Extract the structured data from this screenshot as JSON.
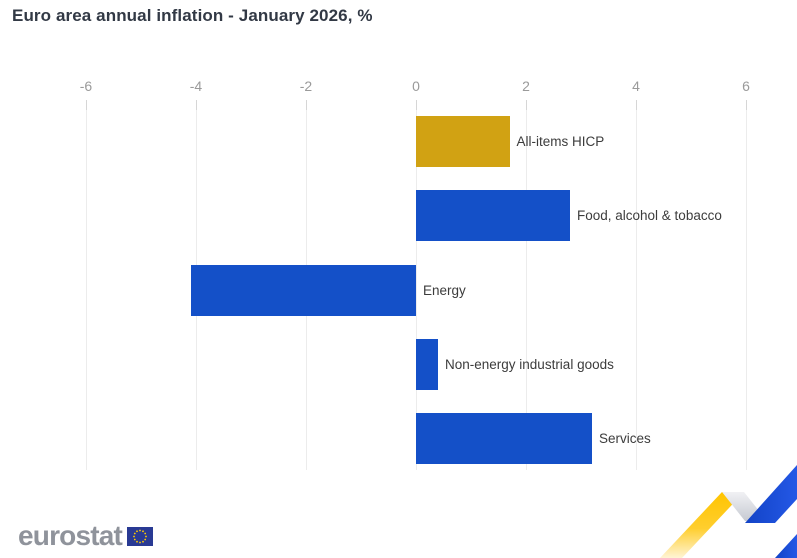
{
  "header": {
    "title": "Euro area annual inflation - January 2026, %"
  },
  "chart_data": {
    "type": "bar",
    "orientation": "horizontal",
    "title": "Euro area annual inflation - January 2026, %",
    "xlabel": "",
    "ylabel": "",
    "categories": [
      "All-items HICP",
      "Food, alcohol & tobacco",
      "Energy",
      "Non-energy industrial goods",
      "Services"
    ],
    "values": [
      1.7,
      2.8,
      -4.1,
      0.4,
      3.2
    ],
    "bar_colors": [
      "#D1A213",
      "#1450C8",
      "#1450C8",
      "#1450C8",
      "#1450C8"
    ],
    "xlim": [
      -6,
      6
    ],
    "x_ticks": [
      -6,
      -4,
      -2,
      0,
      2,
      4,
      6
    ],
    "grid": "vertical-light",
    "legend": "none"
  },
  "footer": {
    "logo_text": "eurostat"
  },
  "colors": {
    "accent_gold": "#D1A213",
    "accent_blue": "#1450C8",
    "grid_line": "#ECECEC",
    "tick_mark": "#D6D6D6",
    "axis_text": "#9A9A9A",
    "label_text": "#3C3C3C",
    "title_text": "#323945",
    "logo_gray": "#8F939B",
    "flag_blue": "#293A94",
    "star_yellow": "#FFCC00",
    "ribbon_yellow": "#FFC400",
    "ribbon_gray": "#CDD1D9",
    "ribbon_blue": "#1C55DB"
  }
}
